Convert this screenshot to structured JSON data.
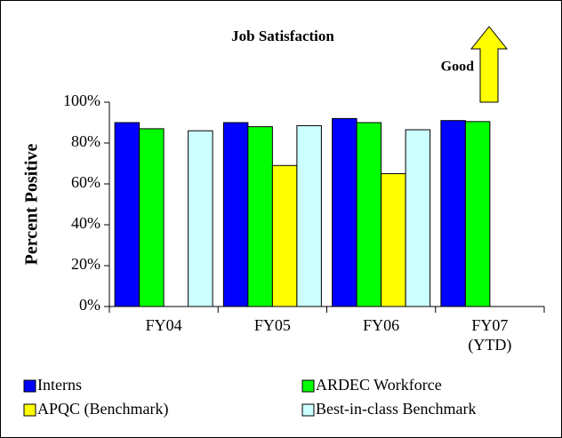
{
  "chart_data": {
    "type": "bar",
    "title": "Job Satisfaction",
    "y_label": "Percent Positive",
    "annotation": "Good",
    "categories": [
      "FY04",
      "FY05",
      "FY06",
      "FY07 (YTD)"
    ],
    "series": [
      {
        "name": "Interns",
        "color": "#0000ff",
        "values": [
          90,
          90,
          92,
          91
        ]
      },
      {
        "name": "ARDEC Workforce",
        "color": "#00ff00",
        "values": [
          87,
          88,
          90,
          90.5
        ]
      },
      {
        "name": "APQC (Benchmark)",
        "color": "#ffff00",
        "values": [
          null,
          69,
          65,
          null
        ]
      },
      {
        "name": "Best-in-class Benchmark",
        "color": "#ccffff",
        "values": [
          86,
          88.5,
          86.5,
          null
        ]
      }
    ],
    "ylim": [
      0,
      100
    ],
    "yticks": [
      {
        "value": 0,
        "label": "0%"
      },
      {
        "value": 20,
        "label": "20%"
      },
      {
        "value": 40,
        "label": "40%"
      },
      {
        "value": 60,
        "label": "60%"
      },
      {
        "value": 80,
        "label": "80%"
      },
      {
        "value": 100,
        "label": "100%"
      }
    ],
    "grid": false,
    "legend": "bottom"
  }
}
